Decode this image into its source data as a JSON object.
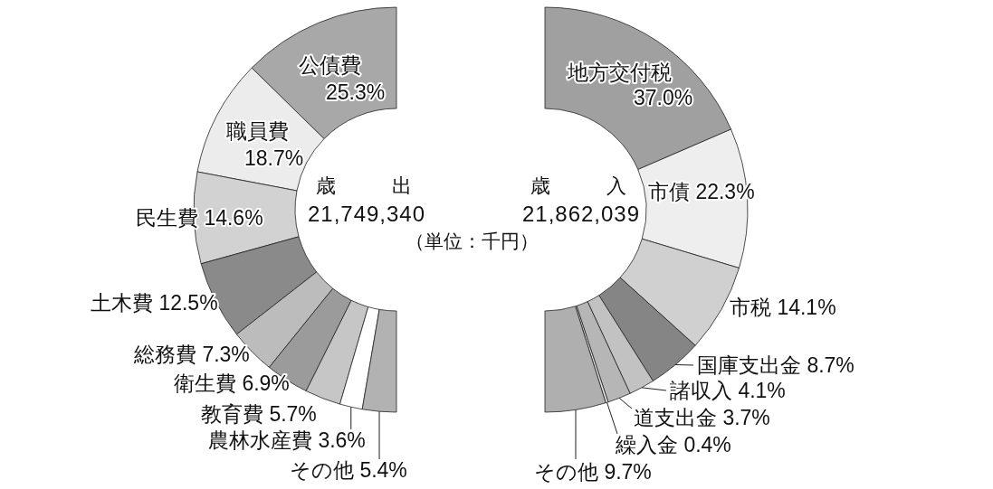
{
  "chart_data": [
    {
      "type": "donut",
      "title": "歳　　出",
      "subtitle": "21,749,340",
      "annotations": [
        "（単位：千円）"
      ],
      "categories": [
        "公債費",
        "職員費",
        "民生費",
        "土木費",
        "総務費",
        "衛生費",
        "教育費",
        "農林水産費",
        "その他"
      ],
      "values": [
        25.3,
        18.7,
        14.6,
        12.5,
        7.3,
        6.9,
        5.7,
        3.6,
        5.4
      ],
      "value_labels": [
        "25.3%",
        "18.7%",
        "14.6%",
        "12.5%",
        "7.3%",
        "6.9%",
        "5.7%",
        "3.6%",
        "5.4%"
      ],
      "colors": [
        "#a8a8a8",
        "#ececec",
        "#d2d2d2",
        "#8a8a8a",
        "#bcbcbc",
        "#9b9b9b",
        "#c6c6c6",
        "#ffffff",
        "#b2b2b2"
      ]
    },
    {
      "type": "donut",
      "title": "歳　　入",
      "subtitle": "21,862,039",
      "categories": [
        "地方交付税",
        "市債",
        "市税",
        "国庫支出金",
        "諸収入",
        "道支出金",
        "繰入金",
        "その他"
      ],
      "values": [
        37.0,
        22.3,
        14.1,
        8.7,
        4.1,
        3.7,
        0.4,
        9.7
      ],
      "value_labels": [
        "37.0%",
        "22.3%",
        "14.1%",
        "8.7%",
        "4.1%",
        "3.7%",
        "0.4%",
        "9.7%"
      ],
      "colors": [
        "#a0a0a0",
        "#eeeeee",
        "#d0d0d0",
        "#858585",
        "#c2c2c2",
        "#b6b6b6",
        "#e0e0e0",
        "#afafaf"
      ]
    }
  ]
}
